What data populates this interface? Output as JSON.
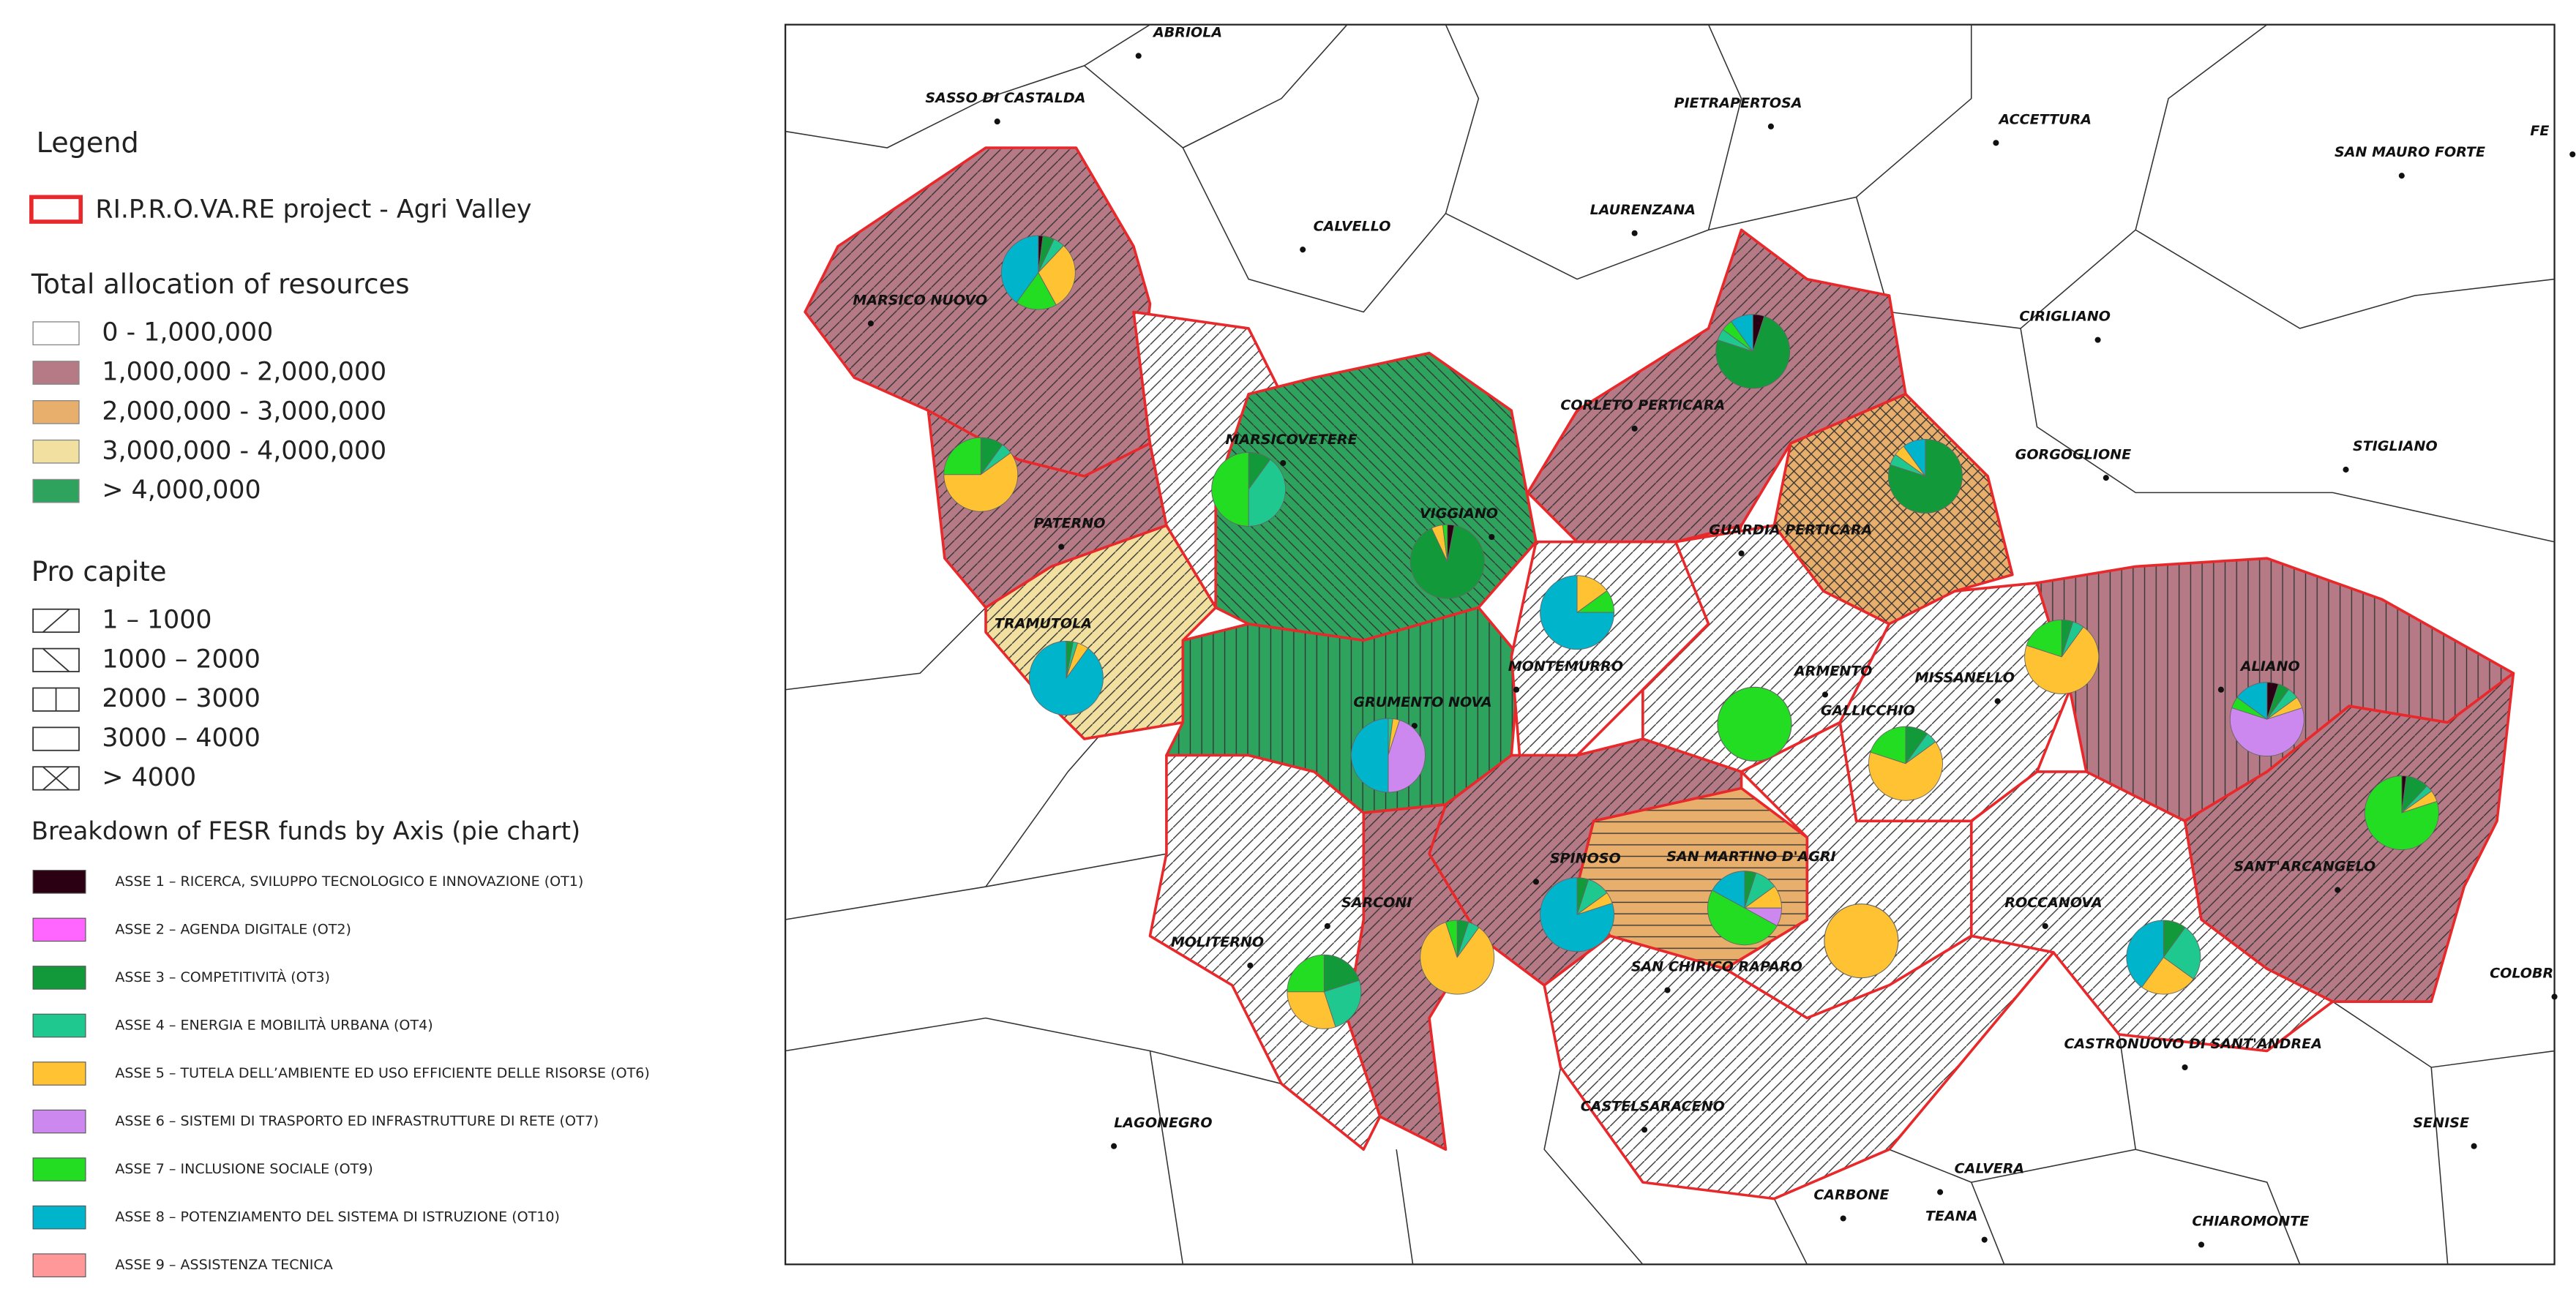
{
  "legend": {
    "title": "Legend",
    "project": "RI.P.R.O.VA.RE project  - Agri Valley",
    "allocation_title": "Total allocation of resources",
    "allocation": [
      {
        "label": "0 - 1,000,000",
        "color": "#ffffff"
      },
      {
        "label": "1,000,000 - 2,000,000",
        "color": "#b57a86"
      },
      {
        "label": "2,000,000 - 3,000,000",
        "color": "#e8ae6c"
      },
      {
        "label": "3,000,000 - 4,000,000",
        "color": "#f1e0a0"
      },
      {
        "label": "> 4,000,000",
        "color": "#2ea35e"
      }
    ],
    "procapite_title": "Pro capite",
    "procapite": [
      "1 – 1000",
      "1000 – 2000",
      "2000 – 3000",
      "3000 – 4000",
      "> 4000"
    ],
    "breakdown_title": "Breakdown of FESR funds by Axis (pie chart)",
    "axes": [
      {
        "label": "ASSE 1 – RICERCA, SVILUPPO TECNOLOGICO E INNOVAZIONE (OT1)",
        "color": "#2a0012"
      },
      {
        "label": "ASSE 2 – AGENDA DIGITALE (OT2)",
        "color": "#ff66ff"
      },
      {
        "label": "ASSE 3 – COMPETITIVITÀ (OT3)",
        "color": "#129a3a"
      },
      {
        "label": "ASSE 4 – ENERGIA E MOBILITÀ URBANA (OT4)",
        "color": "#1fc88e"
      },
      {
        "label": "ASSE 5 – TUTELA DELL’AMBIENTE ED USO EFFICIENTE DELLE RISORSE (OT6)",
        "color": "#ffc233"
      },
      {
        "label": "ASSE 6 – SISTEMI DI TRASPORTO ED INFRASTRUTTURE DI RETE (OT7)",
        "color": "#cc88ee"
      },
      {
        "label": "ASSE 7 – INCLUSIONE SOCIALE (OT9)",
        "color": "#22dd22"
      },
      {
        "label": "ASSE 8 – POTENZIAMENTO DEL SISTEMA DI ISTRUZIONE (OT10)",
        "color": "#00b4cc"
      },
      {
        "label": "ASSE 9 – ASSISTENZA TECNICA",
        "color": "#ff9999"
      }
    ]
  },
  "places": [
    "ABRIOLA",
    "SASSO DI CASTALDA",
    "PIETRAPERTOSA",
    "ACCETTURA",
    "SAN MAURO FORTE",
    "FE",
    "CALVELLO",
    "LAURENZANA",
    "CIRIGLIANO",
    "MARSICO NUOVO",
    "CORLETO PERTICARA",
    "GORGOGLIONE",
    "STIGLIANO",
    "MARSICOVETERE",
    "VIGGIANO",
    "GUARDIA PERTICARA",
    "PATERNO",
    "TRAMUTOLA",
    "MONTEMURRO",
    "ARMENTO",
    "MISSANELLO",
    "ALIANO",
    "GRUMENTO NOVA",
    "GALLICCHIO",
    "SPINOSO",
    "SAN MARTINO D'AGRI",
    "SANT'ARCANGELO",
    "SARCONI",
    "ROCCANOVA",
    "MOLITERNO",
    "SAN CHIRICO RAPARO",
    "CASTRONUOVO DI SANT'ANDREA",
    "COLOBR",
    "LAGONEGRO",
    "CASTELSARACENO",
    "SENISE",
    "CALVERA",
    "CARBONE",
    "TEANA",
    "CHIAROMONTE"
  ],
  "pies": [
    {
      "values": [
        2,
        0,
        5,
        5,
        30,
        0,
        18,
        40,
        0
      ]
    },
    {
      "values": [
        0,
        0,
        10,
        5,
        60,
        0,
        25,
        0,
        0
      ]
    },
    {
      "values": [
        0,
        0,
        10,
        40,
        0,
        0,
        50,
        0,
        0
      ]
    },
    {
      "values": [
        3,
        0,
        90,
        0,
        5,
        0,
        2,
        0,
        0
      ]
    },
    {
      "values": [
        0,
        0,
        3,
        2,
        5,
        0,
        0,
        90,
        0
      ]
    },
    {
      "values": [
        0,
        0,
        0,
        2,
        3,
        45,
        0,
        50,
        0
      ]
    },
    {
      "values": [
        0,
        0,
        0,
        0,
        15,
        0,
        10,
        75,
        0
      ]
    },
    {
      "values": [
        5,
        0,
        75,
        5,
        0,
        0,
        5,
        10,
        0
      ]
    },
    {
      "values": [
        0,
        0,
        80,
        5,
        5,
        0,
        0,
        10,
        0
      ]
    },
    {
      "values": [
        0,
        0,
        0,
        0,
        0,
        0,
        100,
        0,
        0
      ]
    },
    {
      "values": [
        0,
        0,
        10,
        5,
        65,
        0,
        20,
        0,
        0
      ]
    },
    {
      "values": [
        0,
        0,
        5,
        5,
        70,
        0,
        20,
        0,
        0
      ]
    },
    {
      "values": [
        5,
        0,
        5,
        5,
        5,
        60,
        5,
        15,
        0
      ]
    },
    {
      "values": [
        2,
        0,
        10,
        3,
        5,
        0,
        80,
        0,
        0
      ]
    },
    {
      "values": [
        0,
        0,
        5,
        10,
        5,
        0,
        0,
        80,
        0
      ]
    },
    {
      "values": [
        0,
        0,
        5,
        10,
        10,
        8,
        50,
        17,
        0
      ]
    },
    {
      "values": [
        0,
        0,
        0,
        0,
        100,
        0,
        0,
        0,
        0
      ]
    },
    {
      "values": [
        0,
        0,
        5,
        5,
        85,
        0,
        5,
        0,
        0
      ]
    },
    {
      "values": [
        0,
        0,
        20,
        25,
        30,
        0,
        25,
        0,
        0
      ]
    },
    {
      "values": [
        0,
        0,
        10,
        25,
        25,
        0,
        0,
        40,
        0
      ]
    }
  ]
}
